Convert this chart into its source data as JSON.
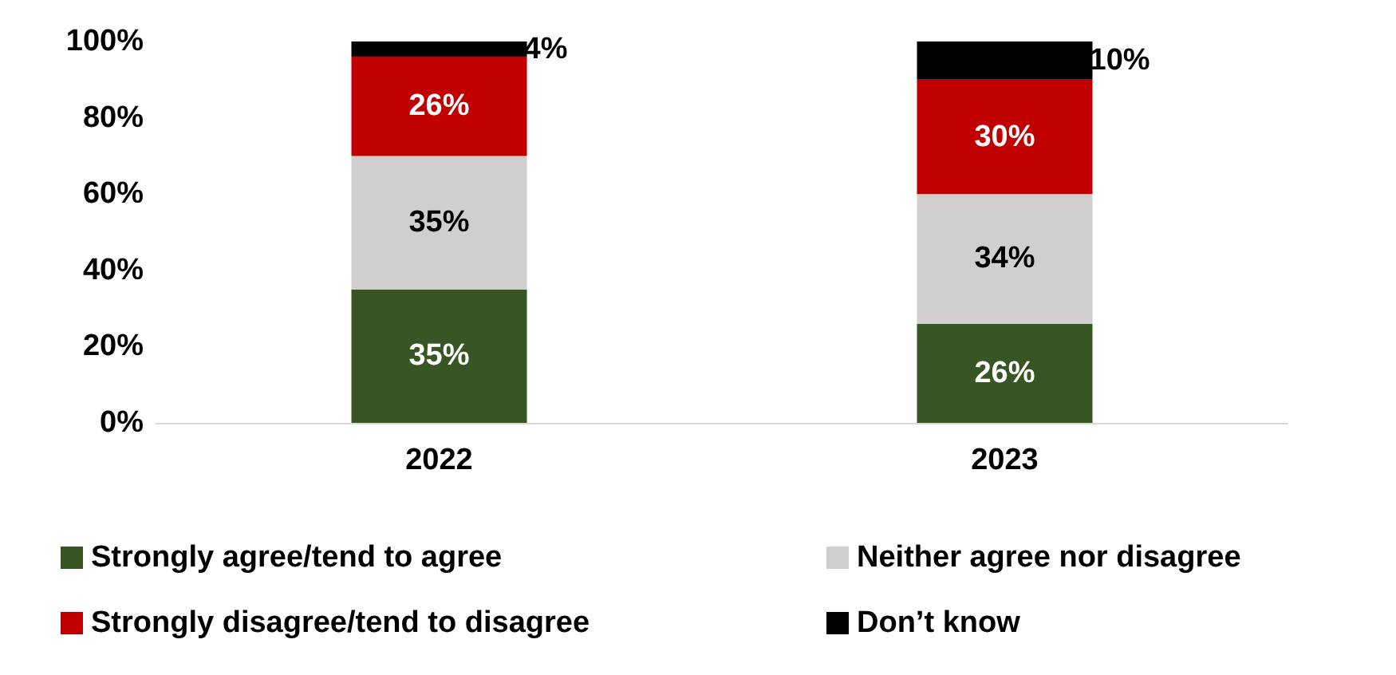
{
  "chart_data": {
    "type": "bar",
    "stacked": true,
    "categories": [
      "2022",
      "2023"
    ],
    "series": [
      {
        "name": "Strongly agree/tend to agree",
        "color": "#375623",
        "values": [
          35,
          26
        ],
        "value_labels": [
          "35%",
          "26%"
        ]
      },
      {
        "name": "Neither agree nor disagree",
        "color": "#d0cece",
        "values": [
          35,
          34
        ],
        "value_labels": [
          "35%",
          "34%"
        ]
      },
      {
        "name": "Strongly disagree/tend to disagree",
        "color": "#c00000",
        "values": [
          26,
          30
        ],
        "value_labels": [
          "26%",
          "30%"
        ]
      },
      {
        "name": "Don’t know",
        "color": "#000000",
        "values": [
          4,
          10
        ],
        "value_labels": [
          "4%",
          "10%"
        ]
      }
    ],
    "ylim": [
      0,
      100
    ],
    "yticks": [
      {
        "value": 0,
        "label": "0%"
      },
      {
        "value": 20,
        "label": "20%"
      },
      {
        "value": 40,
        "label": "40%"
      },
      {
        "value": 60,
        "label": "60%"
      },
      {
        "value": 80,
        "label": "80%"
      },
      {
        "value": 100,
        "label": "100%"
      }
    ],
    "grid": false,
    "legend": "bottom"
  }
}
